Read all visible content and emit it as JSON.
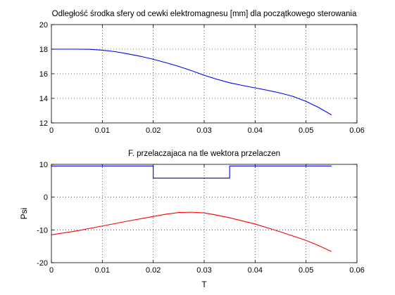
{
  "chart_data": [
    {
      "type": "line",
      "title": "Odległość środka sfery od cewki elektromagnesu [mm] dla początkowego sterowania",
      "xlabel": "",
      "ylabel": "",
      "xlim": [
        0,
        0.06
      ],
      "ylim": [
        12,
        20
      ],
      "x_ticks": [
        0,
        0.01,
        0.02,
        0.03,
        0.04,
        0.05,
        0.06
      ],
      "x_tick_labels": [
        "0",
        "0.01",
        "0.02",
        "0.03",
        "0.04",
        "0.05",
        "0.06"
      ],
      "y_ticks": [
        12,
        14,
        16,
        18,
        20
      ],
      "y_tick_labels": [
        "12",
        "14",
        "16",
        "18",
        "20"
      ],
      "grid": true,
      "series": [
        {
          "color": "#0000ff",
          "x": [
            0,
            0.005,
            0.0075,
            0.01,
            0.0125,
            0.015,
            0.0175,
            0.02,
            0.0225,
            0.025,
            0.0275,
            0.03,
            0.0325,
            0.035,
            0.0375,
            0.04,
            0.0425,
            0.045,
            0.0475,
            0.05,
            0.0525,
            0.055
          ],
          "y": [
            18,
            18,
            17.99,
            17.92,
            17.8,
            17.62,
            17.42,
            17.18,
            16.9,
            16.6,
            16.25,
            15.88,
            15.55,
            15.27,
            15.05,
            14.85,
            14.65,
            14.43,
            14.15,
            13.75,
            13.25,
            12.65
          ]
        }
      ]
    },
    {
      "type": "line",
      "title": "F. przelaczajaca na tle wektora przelaczen",
      "xlabel": "T",
      "ylabel": "Psi",
      "xlim": [
        0,
        0.06
      ],
      "ylim": [
        -20,
        10
      ],
      "x_ticks": [
        0,
        0.01,
        0.02,
        0.03,
        0.04,
        0.05,
        0.06
      ],
      "x_tick_labels": [
        "0",
        "0.01",
        "0.02",
        "0.03",
        "0.04",
        "0.05",
        "0.06"
      ],
      "y_ticks": [
        -20,
        -10,
        0,
        10
      ],
      "y_tick_labels": [
        "-20",
        "-10",
        "0",
        "10"
      ],
      "grid": true,
      "series": [
        {
          "color": "#0000ff",
          "x": [
            0,
            0.02,
            0.02,
            0.035,
            0.035,
            0.055
          ],
          "y": [
            9.5,
            9.5,
            5.8,
            5.8,
            9.5,
            9.5
          ]
        },
        {
          "color": "#ff0000",
          "x": [
            0,
            0.005,
            0.01,
            0.015,
            0.02,
            0.0225,
            0.025,
            0.0275,
            0.03,
            0.0325,
            0.035,
            0.04,
            0.045,
            0.05,
            0.0525,
            0.055
          ],
          "y": [
            -11.5,
            -10.3,
            -8.8,
            -7.3,
            -5.9,
            -5.2,
            -4.7,
            -4.6,
            -4.8,
            -5.5,
            -6.3,
            -8.2,
            -10.6,
            -13.2,
            -14.8,
            -16.6
          ]
        }
      ]
    }
  ]
}
